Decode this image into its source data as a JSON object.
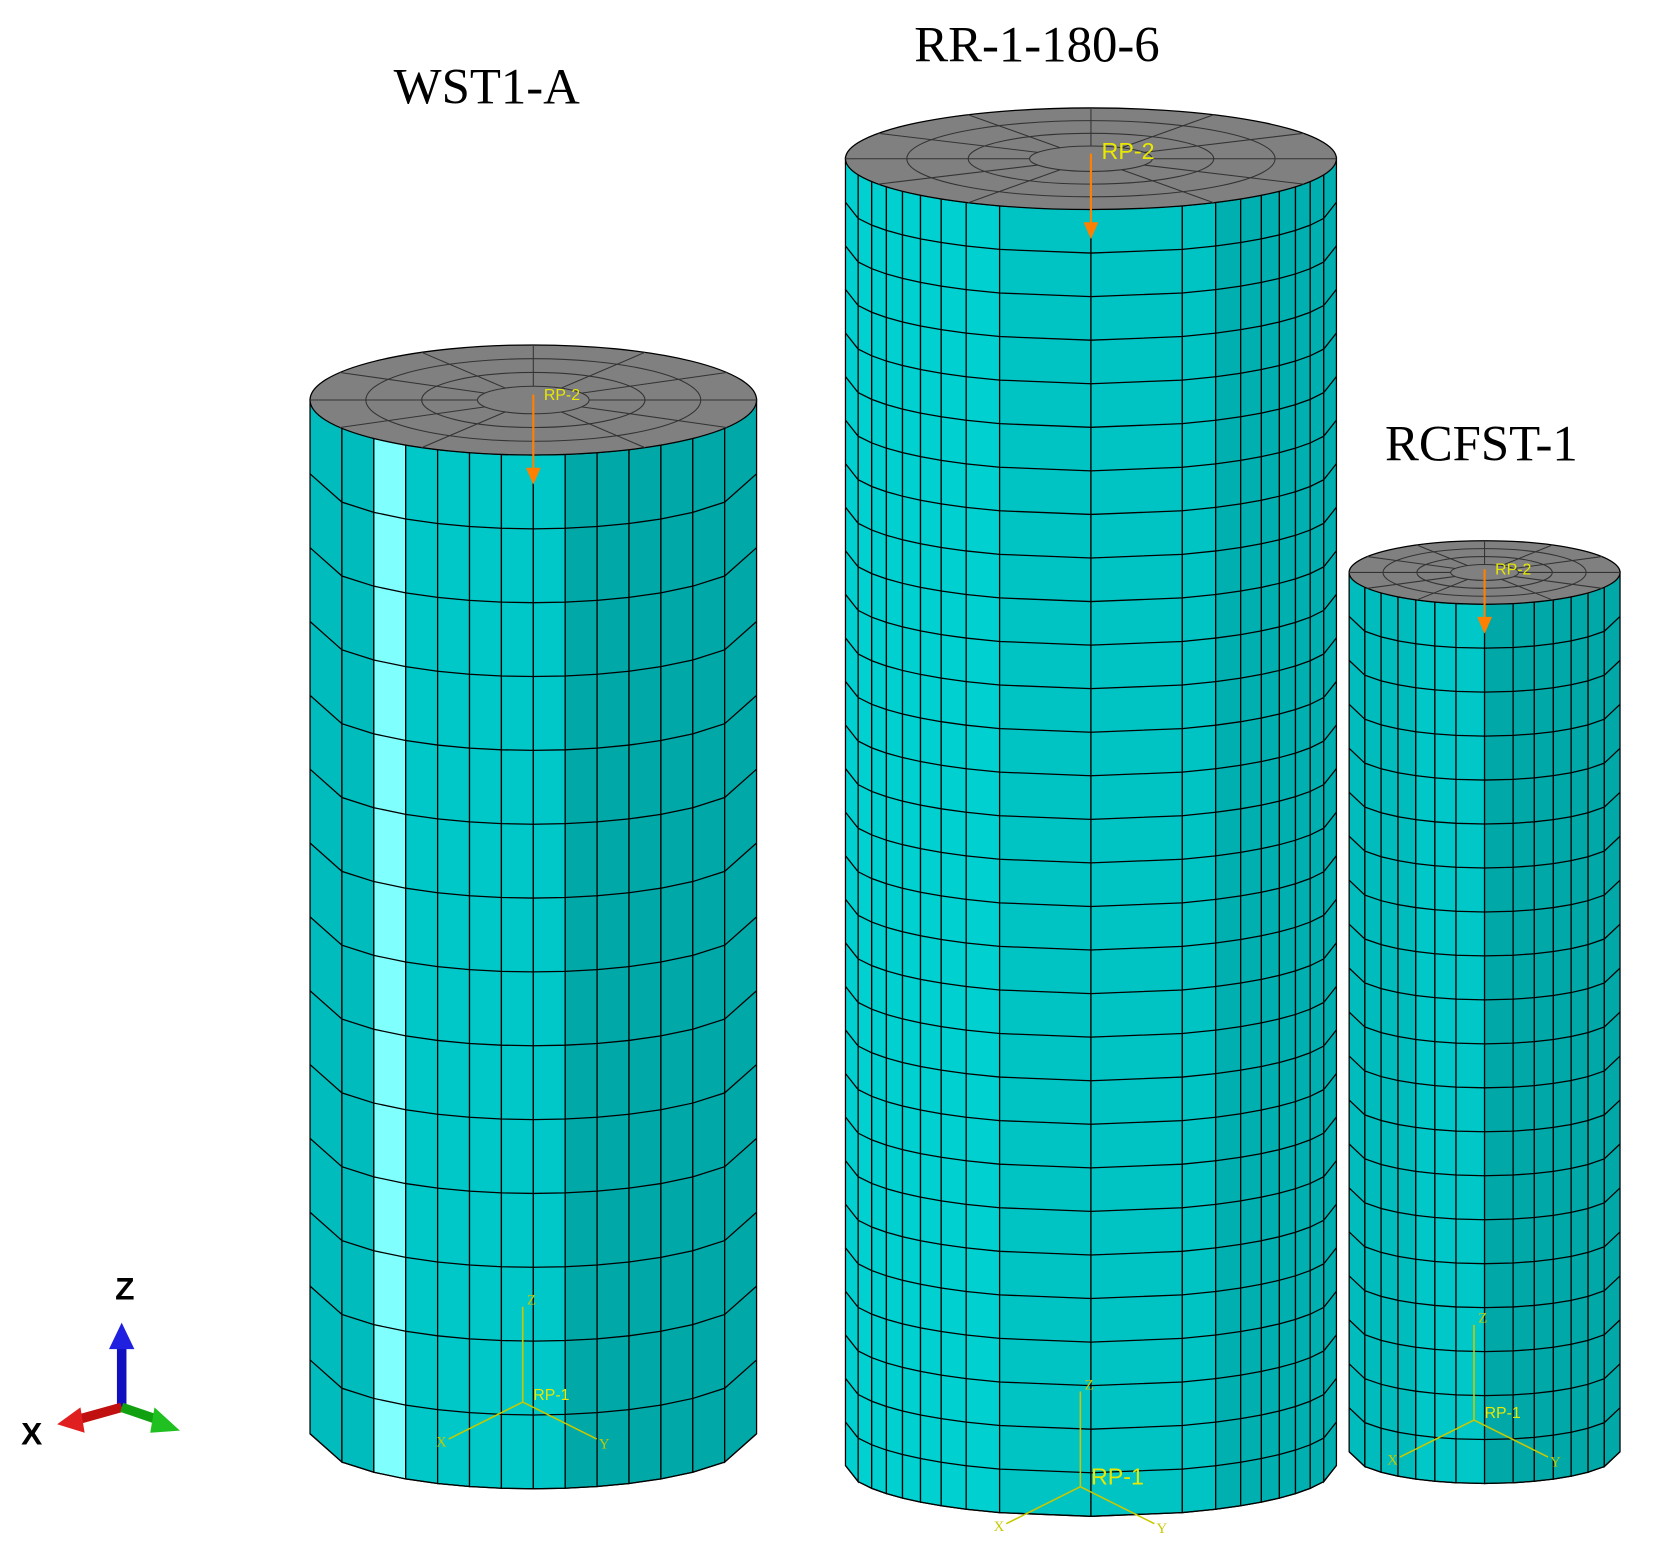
{
  "specimens": [
    {
      "label": "WST1-A",
      "top_point": "RP-2",
      "bottom_point": "RP-1",
      "axes": [
        "Z",
        "X",
        "Y"
      ]
    },
    {
      "label": "RR-1-180-6",
      "top_point": "RP-2",
      "bottom_point": "RP-1",
      "axes": [
        "Z",
        "X",
        "Y"
      ]
    },
    {
      "label": "RCFST-1",
      "top_point": "RP-2",
      "bottom_point": "RP-1",
      "axes": [
        "Z",
        "X",
        "Y"
      ]
    }
  ],
  "triad": {
    "labels": [
      "Z",
      "X"
    ]
  }
}
